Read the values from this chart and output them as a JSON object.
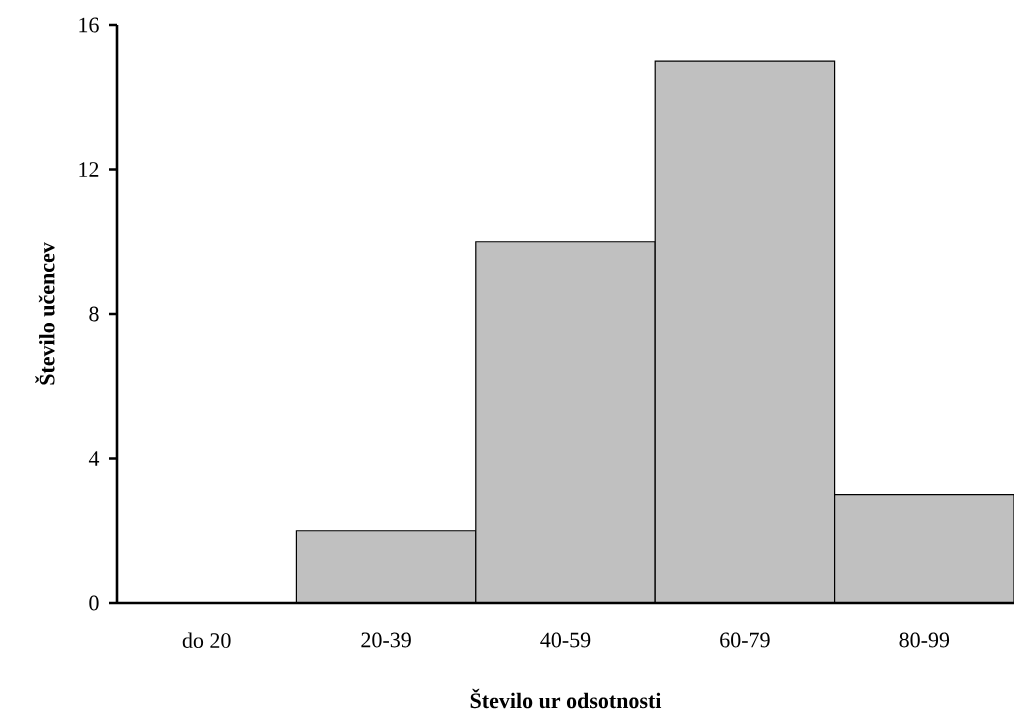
{
  "chart_data": {
    "type": "bar",
    "xlabel": "Število ur odsotnosti",
    "ylabel": "Število učencev",
    "categories": [
      "do 20",
      "20-39",
      "40-59",
      "60-79",
      "80-99"
    ],
    "values": [
      0,
      2,
      10,
      15,
      3
    ],
    "color": "#c0c0c0",
    "ylim": [
      0,
      16
    ],
    "yticks": [
      0,
      4,
      8,
      12,
      16
    ]
  }
}
